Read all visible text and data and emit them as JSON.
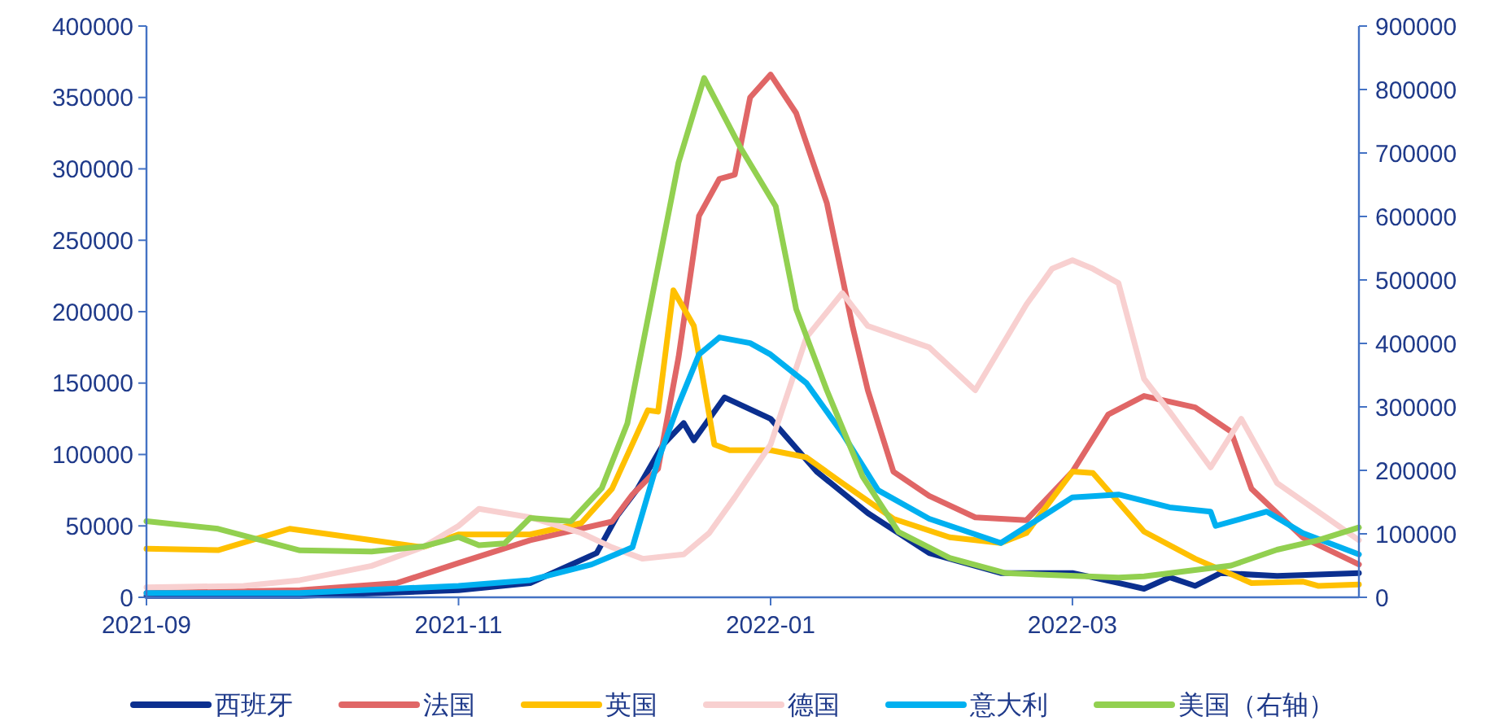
{
  "chart_data": {
    "type": "line",
    "xlim": [
      "2021-09-01",
      "2022-04-26"
    ],
    "xticks": [
      {
        "value": "2021-09-01",
        "label": "2021-09"
      },
      {
        "value": "2021-11-01",
        "label": "2021-11"
      },
      {
        "value": "2022-01-01",
        "label": "2022-01"
      },
      {
        "value": "2022-03-01",
        "label": "2022-03"
      }
    ],
    "ylim": [
      0,
      400000
    ],
    "yticks": [
      0,
      50000,
      100000,
      150000,
      200000,
      250000,
      300000,
      350000,
      400000
    ],
    "y2lim": [
      0,
      900000
    ],
    "y2ticks": [
      0,
      100000,
      200000,
      300000,
      400000,
      500000,
      600000,
      700000,
      800000,
      900000
    ],
    "grid": false,
    "legend": "bottom",
    "line_style": "solid",
    "marker": "none",
    "series": [
      {
        "name": "西班牙",
        "color": "#0b2f8f",
        "x": [
          "2021-09-01",
          "2021-10-01",
          "2021-11-01",
          "2021-11-15",
          "2021-11-28",
          "2021-12-02",
          "2021-12-06",
          "2021-12-11",
          "2021-12-15",
          "2021-12-17",
          "2021-12-23",
          "2022-01-01",
          "2022-01-10",
          "2022-01-20",
          "2022-02-01",
          "2022-02-15",
          "2022-03-01",
          "2022-03-10",
          "2022-03-15",
          "2022-03-20",
          "2022-03-25",
          "2022-03-30",
          "2022-04-10",
          "2022-04-26"
        ],
        "values": [
          1000,
          1000,
          5000,
          10000,
          31000,
          57000,
          76000,
          107000,
          122000,
          110000,
          140000,
          125000,
          88000,
          59000,
          31000,
          17000,
          17000,
          10000,
          6000,
          14000,
          8000,
          17000,
          15000,
          17000
        ]
      },
      {
        "name": "法国",
        "color": "#e06666",
        "x": [
          "2021-09-01",
          "2021-10-01",
          "2021-10-20",
          "2021-11-01",
          "2021-11-15",
          "2021-12-01",
          "2021-12-05",
          "2021-12-10",
          "2021-12-14",
          "2021-12-18",
          "2021-12-22",
          "2021-12-25",
          "2021-12-28",
          "2022-01-01",
          "2022-01-06",
          "2022-01-12",
          "2022-01-17",
          "2022-01-20",
          "2022-01-25",
          "2022-02-01",
          "2022-02-10",
          "2022-02-20",
          "2022-03-01",
          "2022-03-08",
          "2022-03-15",
          "2022-03-25",
          "2022-04-01",
          "2022-04-05",
          "2022-04-15",
          "2022-04-26"
        ],
        "values": [
          3000,
          5000,
          10000,
          24000,
          40000,
          53000,
          72000,
          90000,
          168000,
          267000,
          293000,
          296000,
          350000,
          366000,
          339000,
          276000,
          190000,
          145000,
          88000,
          71000,
          56000,
          54000,
          88000,
          128000,
          141000,
          133000,
          116000,
          76000,
          42000,
          23000
        ]
      },
      {
        "name": "英国",
        "color": "#ffc000",
        "x": [
          "2021-09-01",
          "2021-09-15",
          "2021-09-29",
          "2021-10-15",
          "2021-10-25",
          "2021-11-01",
          "2021-11-15",
          "2021-11-25",
          "2021-12-01",
          "2021-12-08",
          "2021-12-10",
          "2021-12-13",
          "2021-12-17",
          "2021-12-21",
          "2021-12-24",
          "2022-01-01",
          "2022-01-08",
          "2022-01-15",
          "2022-01-25",
          "2022-02-05",
          "2022-02-15",
          "2022-02-20",
          "2022-03-01",
          "2022-03-05",
          "2022-03-15",
          "2022-03-25",
          "2022-04-05",
          "2022-04-15",
          "2022-04-18",
          "2022-04-26"
        ],
        "values": [
          34000,
          33000,
          48000,
          40000,
          35000,
          44000,
          44000,
          52000,
          76000,
          131000,
          130000,
          215000,
          190000,
          107000,
          103000,
          103000,
          98000,
          80000,
          55000,
          42000,
          38000,
          45000,
          88000,
          87000,
          46000,
          27000,
          10000,
          11000,
          8000,
          9000
        ]
      },
      {
        "name": "德国",
        "color": "#f8d0d0",
        "x": [
          "2021-09-01",
          "2021-09-20",
          "2021-10-01",
          "2021-10-15",
          "2021-10-25",
          "2021-11-01",
          "2021-11-05",
          "2021-11-15",
          "2021-11-25",
          "2021-12-01",
          "2021-12-07",
          "2021-12-15",
          "2021-12-20",
          "2021-12-25",
          "2022-01-01",
          "2022-01-08",
          "2022-01-15",
          "2022-01-20",
          "2022-02-01",
          "2022-02-10",
          "2022-02-20",
          "2022-02-25",
          "2022-03-01",
          "2022-03-05",
          "2022-03-10",
          "2022-03-15",
          "2022-03-20",
          "2022-03-28",
          "2022-04-03",
          "2022-04-10",
          "2022-04-20",
          "2022-04-26"
        ],
        "values": [
          7000,
          8000,
          12000,
          22000,
          35000,
          50000,
          62000,
          56000,
          45000,
          35000,
          27000,
          30000,
          45000,
          70000,
          107000,
          182000,
          213000,
          190000,
          175000,
          145000,
          205000,
          230000,
          236000,
          230000,
          220000,
          153000,
          130000,
          91000,
          125000,
          80000,
          55000,
          40000
        ]
      },
      {
        "name": "意大利",
        "color": "#00b0f0",
        "x": [
          "2021-09-01",
          "2021-10-01",
          "2021-11-01",
          "2021-11-15",
          "2021-11-27",
          "2021-12-05",
          "2021-12-10",
          "2021-12-14",
          "2021-12-18",
          "2021-12-22",
          "2021-12-28",
          "2022-01-01",
          "2022-01-08",
          "2022-01-15",
          "2022-01-22",
          "2022-02-01",
          "2022-02-15",
          "2022-03-01",
          "2022-03-10",
          "2022-03-20",
          "2022-03-28",
          "2022-03-29",
          "2022-04-08",
          "2022-04-15",
          "2022-04-26"
        ],
        "values": [
          3000,
          3000,
          8000,
          12000,
          23000,
          35000,
          96000,
          135000,
          170000,
          182000,
          178000,
          170000,
          150000,
          115000,
          75000,
          55000,
          38000,
          70000,
          72000,
          63000,
          60000,
          50000,
          60000,
          45000,
          30000
        ]
      },
      {
        "name": "美国（右轴）",
        "color": "#92d050",
        "axis": "y2",
        "x": [
          "2021-09-01",
          "2021-09-15",
          "2021-10-01",
          "2021-10-15",
          "2021-10-25",
          "2021-11-01",
          "2021-11-05",
          "2021-11-10",
          "2021-11-15",
          "2021-11-23",
          "2021-11-29",
          "2021-12-04",
          "2021-12-09",
          "2021-12-14",
          "2021-12-19",
          "2021-12-26",
          "2022-01-02",
          "2022-01-06",
          "2022-01-12",
          "2022-01-19",
          "2022-01-26",
          "2022-02-05",
          "2022-02-16",
          "2022-03-10",
          "2022-03-15",
          "2022-04-01",
          "2022-04-10",
          "2022-04-18",
          "2022-04-26"
        ],
        "values": [
          120000,
          108000,
          74000,
          72000,
          80000,
          95000,
          82000,
          85000,
          125000,
          120000,
          172000,
          274000,
          480000,
          685000,
          818000,
          710000,
          616000,
          454000,
          326000,
          190000,
          103000,
          62000,
          38000,
          31000,
          33000,
          50000,
          75000,
          90000,
          110000
        ]
      }
    ]
  }
}
